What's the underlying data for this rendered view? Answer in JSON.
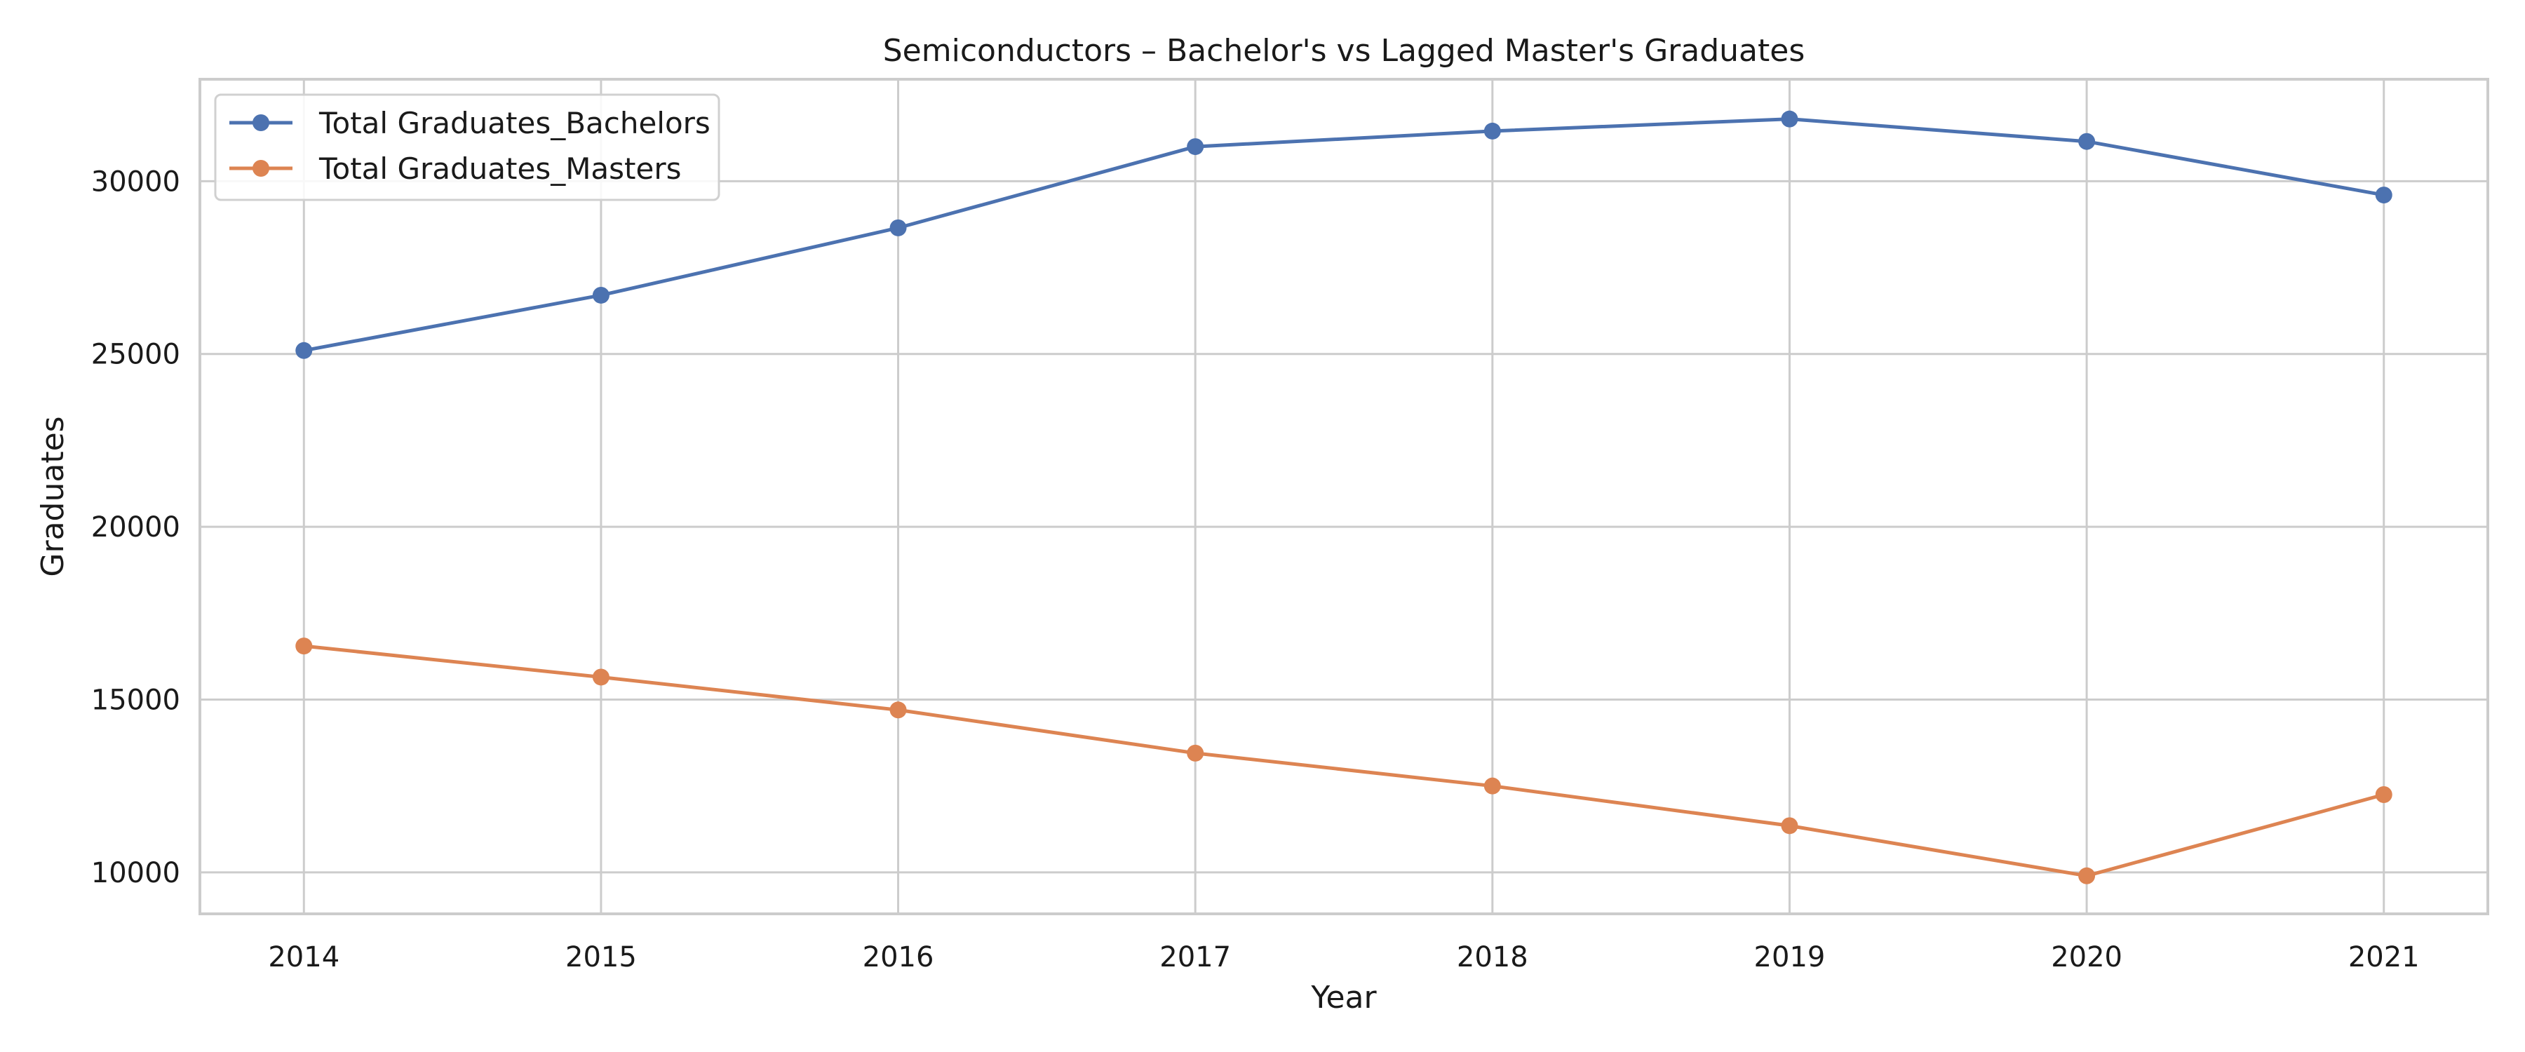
{
  "chart_data": {
    "type": "line",
    "title": "Semiconductors – Bachelor's vs Lagged Master's Graduates",
    "xlabel": "Year",
    "ylabel": "Graduates",
    "x": [
      2014,
      2015,
      2016,
      2017,
      2018,
      2019,
      2020,
      2021
    ],
    "xlim": [
      2013.65,
      2021.35
    ],
    "ylim": [
      8800,
      32950
    ],
    "y_ticks": [
      10000,
      15000,
      20000,
      25000,
      30000
    ],
    "grid": true,
    "legend_position": "top-left",
    "series": [
      {
        "name": "Total Graduates_Bachelors",
        "color": "#4c72b0",
        "values": [
          25100,
          26700,
          28650,
          31000,
          31450,
          31800,
          31150,
          29600
        ]
      },
      {
        "name": "Total Graduates_Masters",
        "color": "#dd8452",
        "values": [
          16550,
          15650,
          14700,
          13450,
          12500,
          11350,
          9900,
          12250
        ]
      }
    ]
  }
}
